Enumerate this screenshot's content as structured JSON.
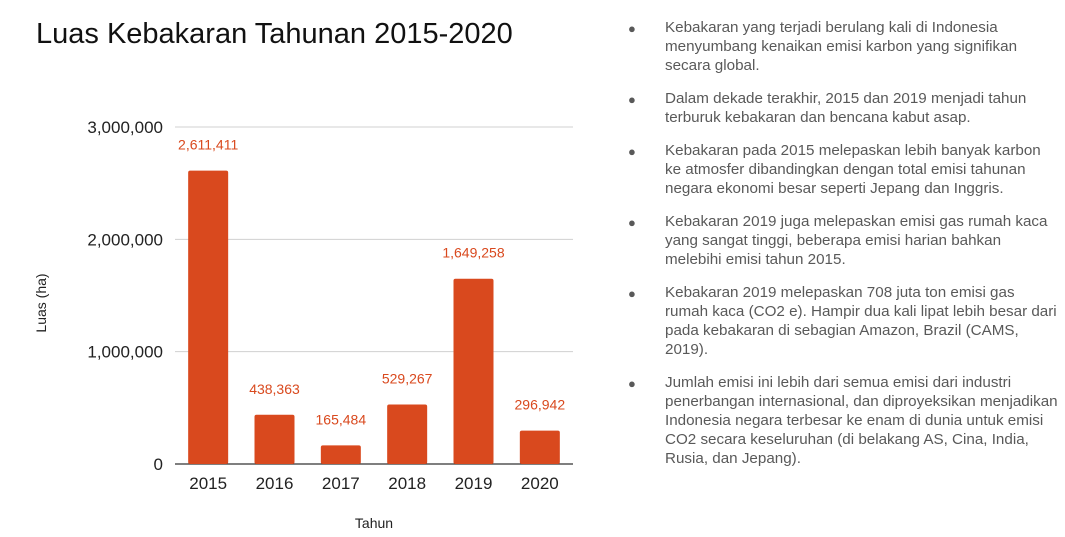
{
  "chart_data": {
    "type": "bar",
    "title": "Luas Kebakaran Tahunan 2015-2020",
    "xlabel": "Tahun",
    "ylabel": "Luas (ha)",
    "categories": [
      "2015",
      "2016",
      "2017",
      "2018",
      "2019",
      "2020"
    ],
    "values": [
      2611411,
      438363,
      165484,
      529267,
      1649258,
      296942
    ],
    "value_labels": [
      "2,611,411",
      "438,363",
      "165,484",
      "529,267",
      "1,649,258",
      "296,942"
    ],
    "ylim": [
      0,
      3000000
    ],
    "yticks": [
      0,
      1000000,
      2000000,
      3000000
    ],
    "ytick_labels": [
      "0",
      "1,000,000",
      "2,000,000",
      "3,000,000"
    ],
    "grid": true,
    "legend": "none",
    "bar_color": "#d9491e",
    "label_color": "#d9491e"
  },
  "bullets": [
    "Kebakaran yang terjadi berulang kali di Indonesia menyumbang kenaikan emisi karbon yang signifikan secara global.",
    "Dalam dekade terakhir, 2015 dan 2019 menjadi tahun terburuk kebakaran dan bencana kabut asap.",
    "Kebakaran pada 2015 melepaskan lebih banyak karbon ke atmosfer dibandingkan dengan total emisi tahunan negara ekonomi besar seperti Jepang dan Inggris.",
    "Kebakaran 2019  juga melepaskan emisi gas rumah kaca yang sangat tinggi, beberapa emisi harian bahkan melebihi emisi tahun 2015.",
    "Kebakaran 2019  melepaskan 708 juta ton emisi gas rumah kaca (CO2 e). Hampir dua kali lipat lebih besar dari pada kebakaran di sebagian Amazon, Brazil (CAMS, 2019).",
    "Jumlah emisi ini lebih dari semua emisi dari industri penerbangan internasional, dan diproyeksikan menjadikan Indonesia negara terbesar ke enam di dunia untuk emisi CO2 secara keseluruhan (di belakang AS, Cina, India, Rusia, dan Jepang)."
  ]
}
